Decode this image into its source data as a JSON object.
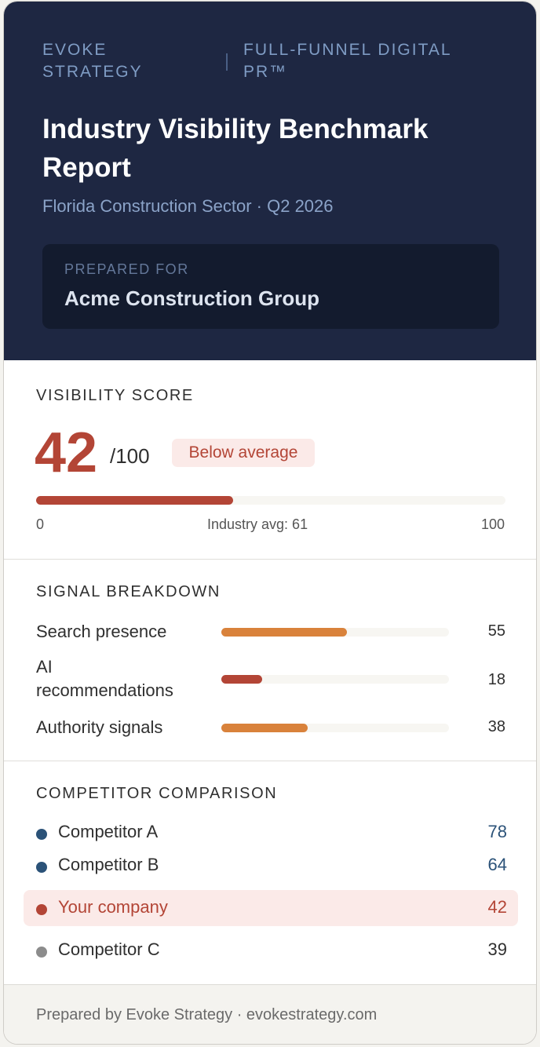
{
  "header": {
    "brand": "EVOKE STRATEGY",
    "tagline": "FULL-FUNNEL DIGITAL PR™",
    "title": "Industry Visibility Benchmark Report",
    "subtitle": "Florida Construction Sector · Q2 2026",
    "prepared_for_label": "PREPARED FOR",
    "prepared_for_name": "Acme Construction Group"
  },
  "visibility": {
    "section_title": "VISIBILITY SCORE",
    "score": "42",
    "max": "/100",
    "badge": "Below average",
    "bar_percent": 42,
    "axis_min": "0",
    "axis_avg": "Industry avg: 61",
    "axis_max": "100",
    "colors": {
      "accent": "#b34536",
      "badge_bg": "#fbeae8",
      "track": "#f7f6f2"
    }
  },
  "signals": {
    "section_title": "SIGNAL BREAKDOWN",
    "items": [
      {
        "label": "Search presence",
        "value": "55",
        "percent": 55,
        "color": "#d9823b"
      },
      {
        "label": "AI recommendations",
        "value": "18",
        "percent": 18,
        "color": "#b34536"
      },
      {
        "label": "Authority signals",
        "value": "38",
        "percent": 38,
        "color": "#d9823b"
      }
    ]
  },
  "competitors": {
    "section_title": "COMPETITOR COMPARISON",
    "items": [
      {
        "name": "Competitor A",
        "value": "78",
        "dot_color": "#2b5278",
        "value_color": "#2b5278",
        "highlight": false
      },
      {
        "name": "Competitor B",
        "value": "64",
        "dot_color": "#2b5278",
        "value_color": "#2b5278",
        "highlight": false
      },
      {
        "name": "Your company",
        "value": "42",
        "dot_color": "#b34536",
        "value_color": "#b34536",
        "highlight": true
      },
      {
        "name": "Competitor C",
        "value": "39",
        "dot_color": "#8c8c8c",
        "value_color": "#2f2f2f",
        "highlight": false
      }
    ]
  },
  "footer": {
    "text": "Prepared by Evoke Strategy · evokestrategy.com"
  }
}
